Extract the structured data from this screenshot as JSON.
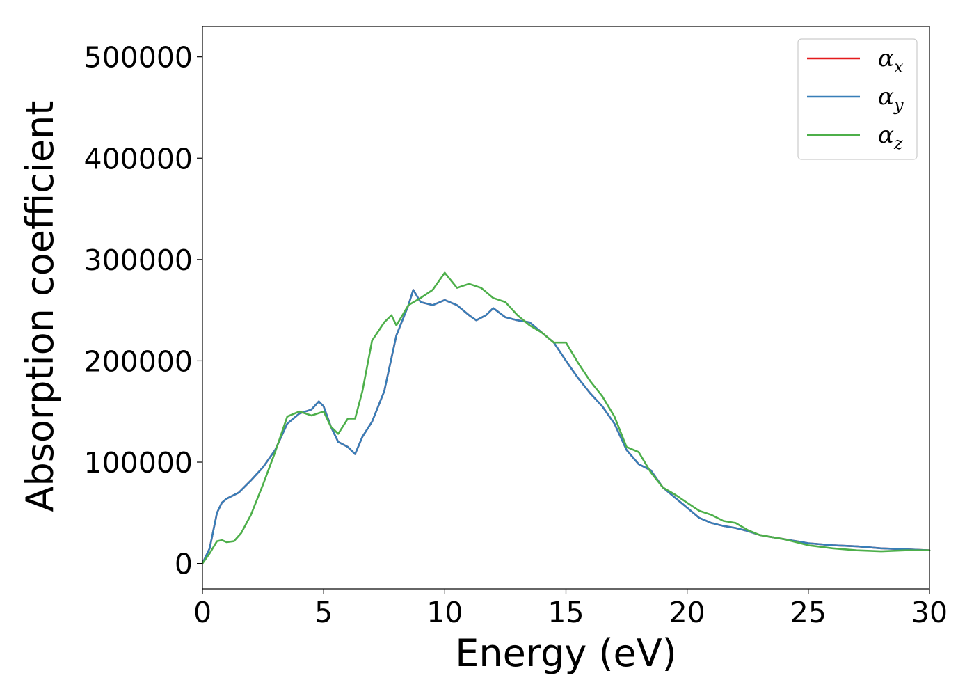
{
  "chart_data": {
    "type": "line",
    "xlabel": "Energy (eV)",
    "ylabel": "Absorption coefficient",
    "xlim": [
      0,
      30
    ],
    "ylim": [
      -25000,
      530000
    ],
    "xticks": [
      0,
      5,
      10,
      15,
      20,
      25,
      30
    ],
    "xtick_labels": [
      "0",
      "5",
      "10",
      "15",
      "20",
      "25",
      "30"
    ],
    "yticks": [
      0,
      100000,
      200000,
      300000,
      400000,
      500000
    ],
    "ytick_labels": [
      "0",
      "100000",
      "200000",
      "300000",
      "400000",
      "500000"
    ],
    "grid": false,
    "legend_position": "top-right",
    "series": [
      {
        "name": "α_x",
        "symbol": "α",
        "subscript": "x",
        "color": "#e41a1c",
        "x": [
          0,
          0.3,
          0.6,
          0.8,
          1.0,
          1.5,
          2.0,
          2.5,
          3.0,
          3.5,
          4.0,
          4.5,
          4.8,
          5.0,
          5.3,
          5.6,
          6.0,
          6.3,
          6.6,
          7.0,
          7.5,
          8.0,
          8.5,
          8.7,
          9.0,
          9.5,
          10.0,
          10.5,
          11.0,
          11.3,
          11.7,
          12.0,
          12.5,
          13.0,
          13.5,
          14.0,
          14.5,
          15.0,
          15.5,
          16.0,
          16.5,
          17.0,
          17.5,
          18.0,
          18.5,
          19.0,
          19.5,
          20.0,
          20.5,
          21.0,
          21.5,
          22.0,
          22.5,
          23.0,
          24.0,
          25.0,
          26.0,
          27.0,
          28.0,
          29.0,
          30.0
        ],
        "values": [
          0,
          15000,
          50000,
          60000,
          64000,
          70000,
          82000,
          95000,
          112000,
          138000,
          148000,
          152000,
          160000,
          155000,
          135000,
          120000,
          115000,
          108000,
          125000,
          140000,
          170000,
          225000,
          255000,
          270000,
          258000,
          255000,
          260000,
          255000,
          245000,
          240000,
          245000,
          252000,
          243000,
          240000,
          238000,
          228000,
          218000,
          200000,
          183000,
          168000,
          155000,
          138000,
          112000,
          98000,
          92000,
          75000,
          65000,
          55000,
          45000,
          40000,
          37000,
          35000,
          32000,
          28000,
          24000,
          20000,
          18000,
          17000,
          15000,
          14000,
          13000
        ]
      },
      {
        "name": "α_y",
        "symbol": "α",
        "subscript": "y",
        "color": "#377eb8",
        "x": [
          0,
          0.3,
          0.6,
          0.8,
          1.0,
          1.5,
          2.0,
          2.5,
          3.0,
          3.5,
          4.0,
          4.5,
          4.8,
          5.0,
          5.3,
          5.6,
          6.0,
          6.3,
          6.6,
          7.0,
          7.5,
          8.0,
          8.5,
          8.7,
          9.0,
          9.5,
          10.0,
          10.5,
          11.0,
          11.3,
          11.7,
          12.0,
          12.5,
          13.0,
          13.5,
          14.0,
          14.5,
          15.0,
          15.5,
          16.0,
          16.5,
          17.0,
          17.5,
          18.0,
          18.5,
          19.0,
          19.5,
          20.0,
          20.5,
          21.0,
          21.5,
          22.0,
          22.5,
          23.0,
          24.0,
          25.0,
          26.0,
          27.0,
          28.0,
          29.0,
          30.0
        ],
        "values": [
          0,
          15000,
          50000,
          60000,
          64000,
          70000,
          82000,
          95000,
          112000,
          138000,
          148000,
          152000,
          160000,
          155000,
          135000,
          120000,
          115000,
          108000,
          125000,
          140000,
          170000,
          225000,
          255000,
          270000,
          258000,
          255000,
          260000,
          255000,
          245000,
          240000,
          245000,
          252000,
          243000,
          240000,
          238000,
          228000,
          218000,
          200000,
          183000,
          168000,
          155000,
          138000,
          112000,
          98000,
          92000,
          75000,
          65000,
          55000,
          45000,
          40000,
          37000,
          35000,
          32000,
          28000,
          24000,
          20000,
          18000,
          17000,
          15000,
          14000,
          13000
        ]
      },
      {
        "name": "α_z",
        "symbol": "α",
        "subscript": "z",
        "color": "#4daf4a",
        "x": [
          0,
          0.3,
          0.6,
          0.8,
          1.0,
          1.3,
          1.6,
          2.0,
          2.5,
          3.0,
          3.5,
          4.0,
          4.5,
          5.0,
          5.3,
          5.6,
          6.0,
          6.3,
          6.6,
          7.0,
          7.5,
          7.8,
          8.0,
          8.5,
          9.0,
          9.5,
          10.0,
          10.5,
          11.0,
          11.5,
          12.0,
          12.5,
          13.0,
          13.5,
          14.0,
          14.5,
          15.0,
          15.5,
          16.0,
          16.5,
          17.0,
          17.5,
          18.0,
          18.5,
          19.0,
          19.5,
          20.0,
          20.5,
          21.0,
          21.5,
          22.0,
          22.5,
          23.0,
          24.0,
          25.0,
          26.0,
          27.0,
          28.0,
          29.0,
          30.0
        ],
        "values": [
          0,
          10000,
          22000,
          23000,
          21000,
          22000,
          30000,
          48000,
          78000,
          110000,
          145000,
          150000,
          146000,
          150000,
          135000,
          128000,
          143000,
          143000,
          170000,
          220000,
          238000,
          245000,
          235000,
          255000,
          262000,
          270000,
          287000,
          272000,
          276000,
          272000,
          262000,
          258000,
          245000,
          235000,
          228000,
          218000,
          218000,
          198000,
          180000,
          165000,
          145000,
          115000,
          110000,
          90000,
          75000,
          68000,
          60000,
          52000,
          48000,
          42000,
          40000,
          33000,
          28000,
          24000,
          18000,
          15000,
          13000,
          12000,
          13000,
          13000
        ]
      }
    ]
  }
}
